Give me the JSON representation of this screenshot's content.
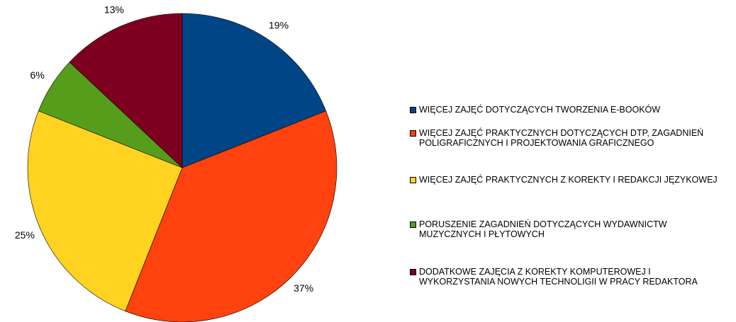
{
  "chart_data": {
    "type": "pie",
    "categories": [
      "WIĘCEJ ZAJĘĆ  DOTYCZĄCYCH TWORZENIA E-BOOKÓW",
      "WIĘCEJ ZAJĘĆ PRAKTYCZNYCH  DOTYCZĄCYCH DTP, ZAGADNIEŃ POLIGRAFICZNYCH I PROJEKTOWANIA GRAFICZNEGO",
      "WIĘCEJ ZAJĘĆ PRAKTYCZNYCH Z KOREKTY I REDAKCJI JĘZYKOWEJ",
      "PORUSZENIE ZAGADNIEŃ DOTYCZĄCYCH  WYDAWNICTW MUZYCZNYCH I PŁYTOWYCH",
      "DODATKOWE ZAJĘCIA Z KOREKTY KOMPUTEROWEJ I WYKORZYSTANIA NOWYCH TECHNOLIGII W PRACY REDAKTORA"
    ],
    "values": [
      19,
      37,
      25,
      6,
      13
    ],
    "value_labels": [
      "19%",
      "37%",
      "25%",
      "6%",
      "13%"
    ],
    "colors": [
      "#004586",
      "#ff420e",
      "#ffd320",
      "#579d1c",
      "#7e0021"
    ],
    "legend": "right"
  }
}
